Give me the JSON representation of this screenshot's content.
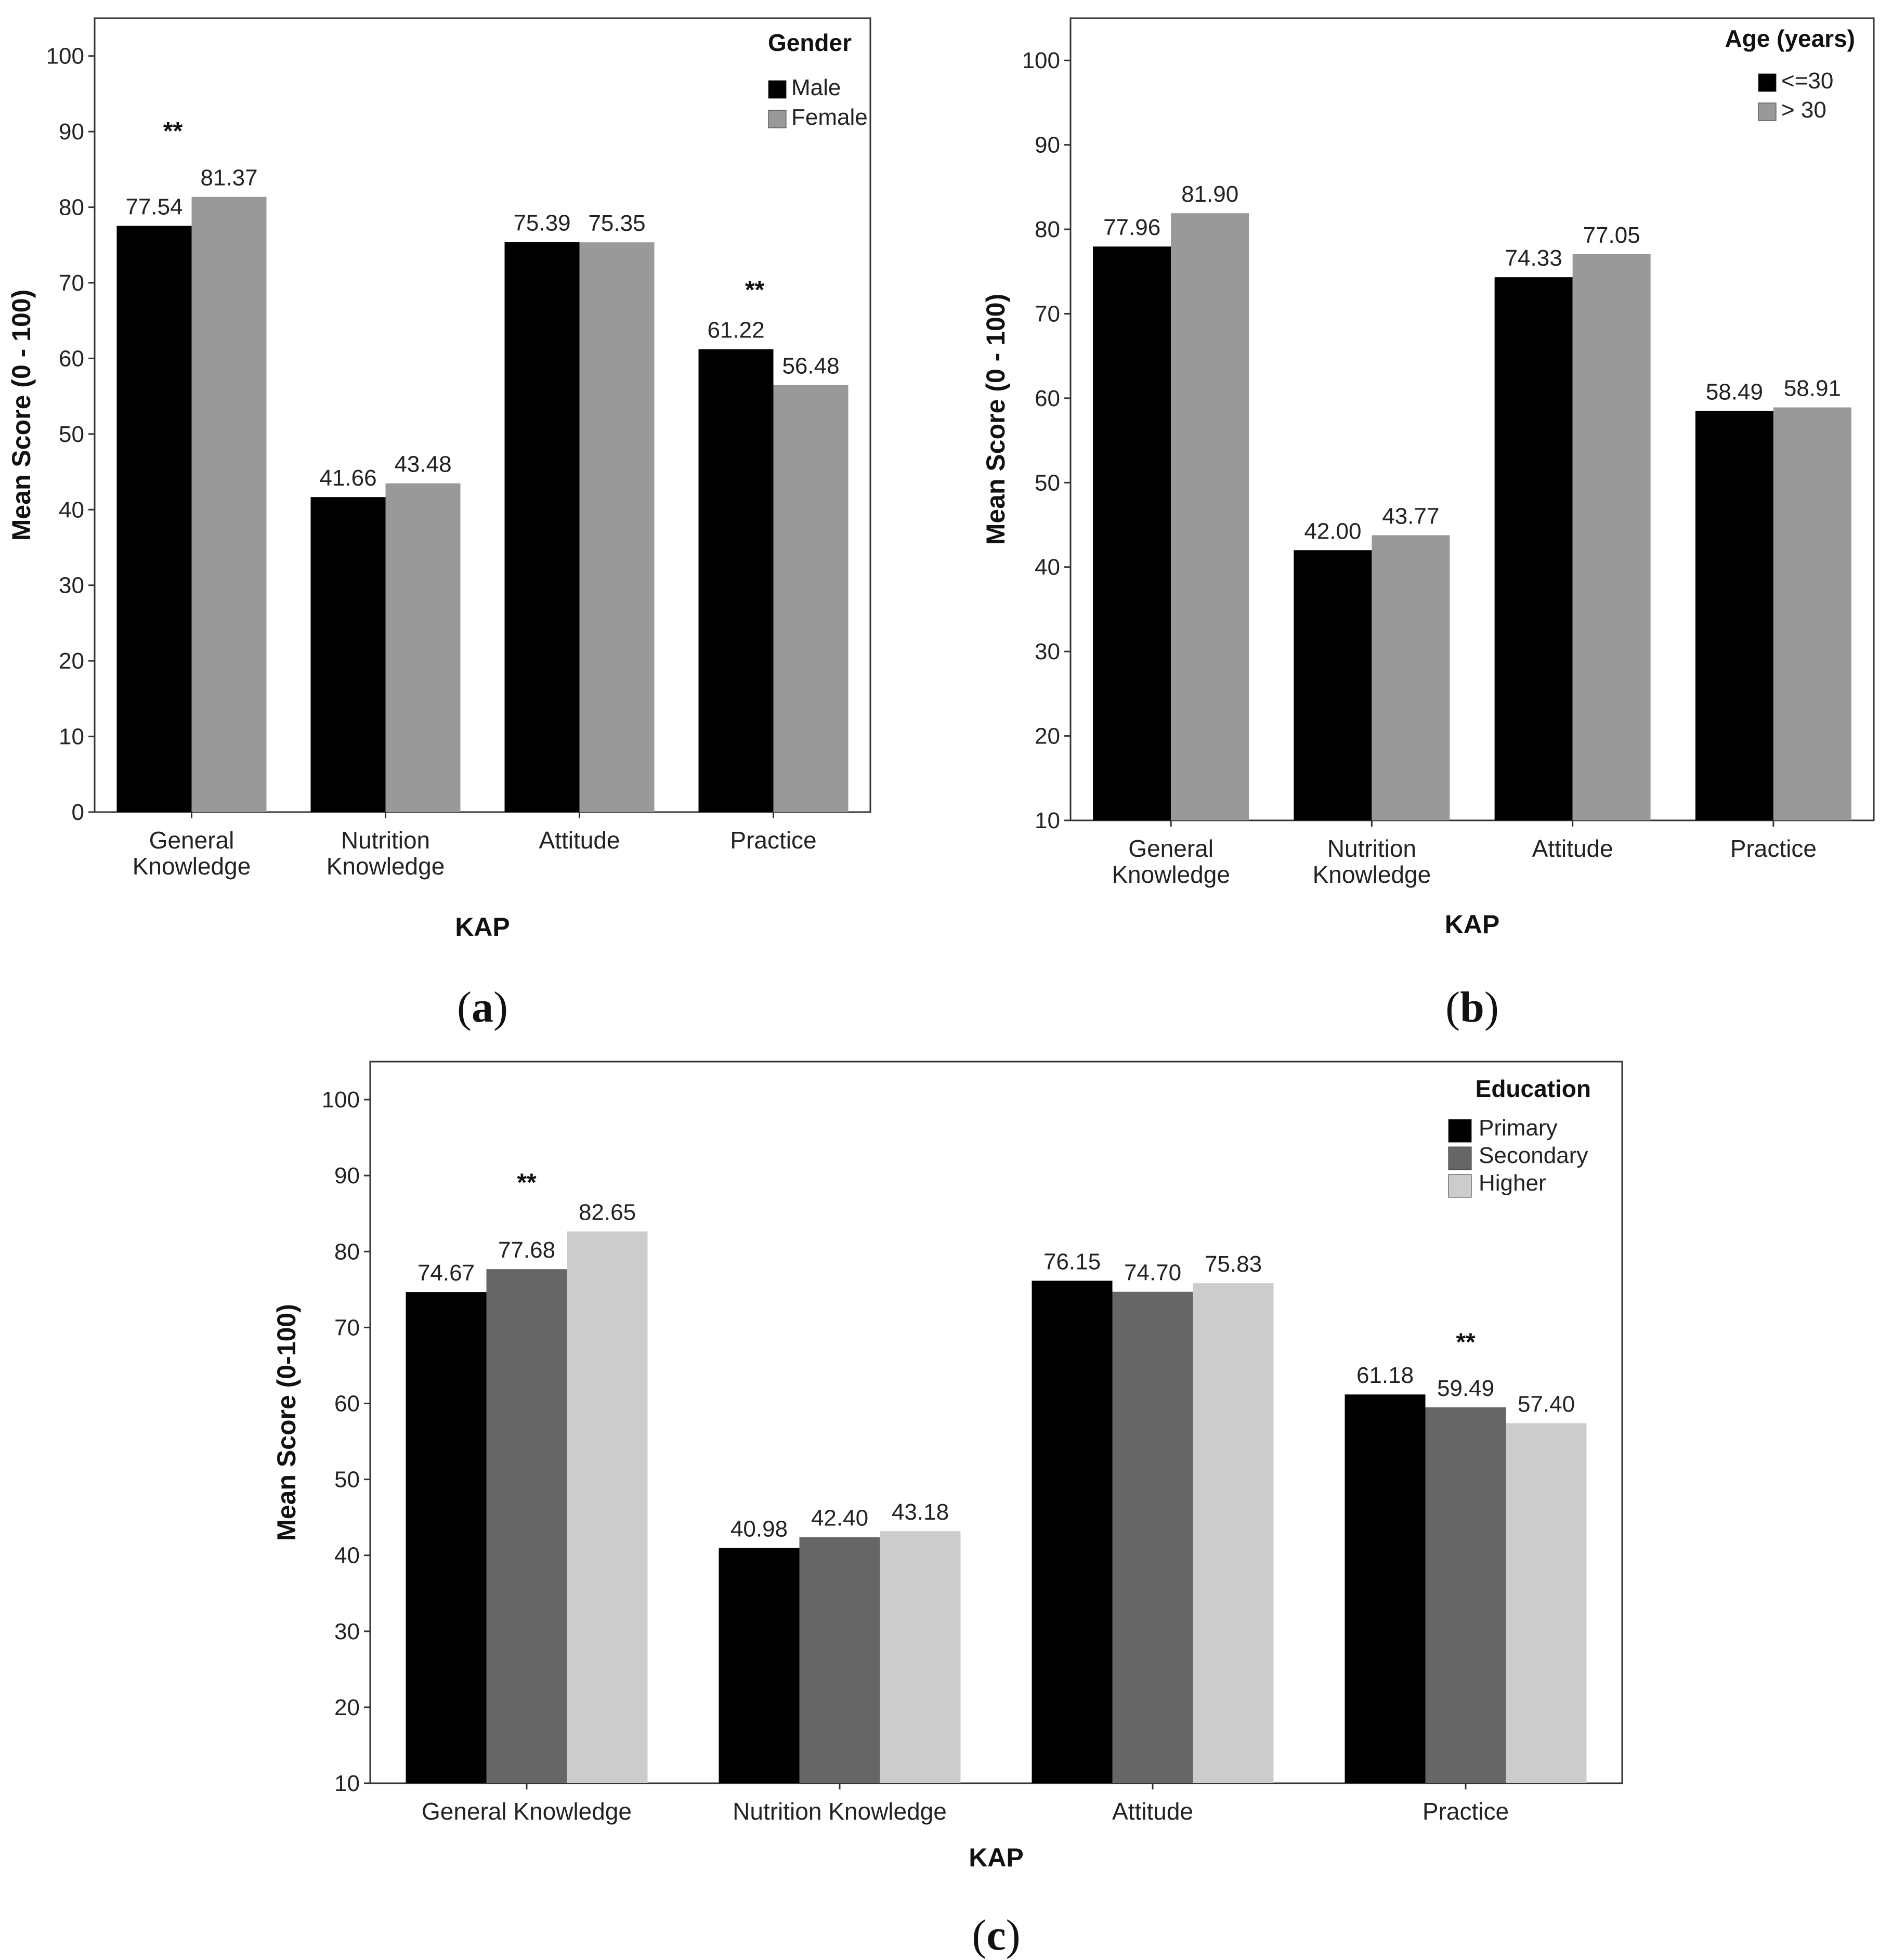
{
  "chart_data": [
    {
      "type": "bar",
      "panel_label": "(a)",
      "panel_letter": "a",
      "categories": [
        [
          "General",
          "Knowledge"
        ],
        [
          "Nutrition",
          "Knowledge"
        ],
        [
          "Attitude"
        ],
        [
          "Practice"
        ]
      ],
      "series": [
        {
          "name": "Male",
          "color": "#000000",
          "values": [
            77.54,
            41.66,
            75.39,
            61.22
          ],
          "labels": [
            "77.54",
            "41.66",
            "75.39",
            "61.22"
          ]
        },
        {
          "name": "Female",
          "color": "#999999",
          "values": [
            81.37,
            43.48,
            75.35,
            56.48
          ],
          "labels": [
            "81.37",
            "43.48",
            "75.35",
            "56.48"
          ]
        }
      ],
      "significance": [
        {
          "category": 0,
          "text": "**",
          "y_value": 90.5
        },
        {
          "category": 3,
          "text": "**",
          "y_value": 69.5
        }
      ],
      "legend_title": "Gender",
      "legend_position": "top-right",
      "xlabel": "KAP",
      "ylabel": "Mean Score (0 - 100)",
      "ylim": [
        0,
        105
      ],
      "yticks": [
        0,
        10,
        20,
        30,
        40,
        50,
        60,
        70,
        80,
        90,
        100
      ],
      "grid": false
    },
    {
      "type": "bar",
      "panel_label": "(b)",
      "panel_letter": "b",
      "categories": [
        [
          "General",
          "Knowledge"
        ],
        [
          "Nutrition",
          "Knowledge"
        ],
        [
          "Attitude"
        ],
        [
          "Practice"
        ]
      ],
      "series": [
        {
          "name": "<=30",
          "color": "#000000",
          "values": [
            77.96,
            42.0,
            74.33,
            58.49
          ],
          "labels": [
            "77.96",
            "42.00",
            "74.33",
            "58.49"
          ]
        },
        {
          "name": "> 30",
          "color": "#999999",
          "values": [
            81.9,
            43.77,
            77.05,
            58.91
          ],
          "labels": [
            "81.90",
            "43.77",
            "77.05",
            "58.91"
          ]
        }
      ],
      "significance": [],
      "legend_title": "Age (years)",
      "legend_position": "top-right",
      "xlabel": "KAP",
      "ylabel": "Mean Score (0 - 100)",
      "ylim": [
        10,
        105
      ],
      "yticks": [
        10,
        20,
        30,
        40,
        50,
        60,
        70,
        80,
        90,
        100
      ],
      "grid": false
    },
    {
      "type": "bar",
      "panel_label": "(c)",
      "panel_letter": "c",
      "categories": [
        [
          "General Knowledge"
        ],
        [
          "Nutrition Knowledge"
        ],
        [
          "Attitude"
        ],
        [
          "Practice"
        ]
      ],
      "series": [
        {
          "name": "Primary",
          "color": "#000000",
          "values": [
            74.67,
            40.98,
            76.15,
            61.18
          ],
          "labels": [
            "74.67",
            "40.98",
            "76.15",
            "61.18"
          ]
        },
        {
          "name": "Secondary",
          "color": "#666666",
          "values": [
            77.68,
            42.4,
            74.7,
            59.49
          ],
          "labels": [
            "77.68",
            "42.40",
            "74.70",
            "59.49"
          ]
        },
        {
          "name": "Higher",
          "color": "#cccccc",
          "values": [
            82.65,
            43.18,
            75.83,
            57.4
          ],
          "labels": [
            "82.65",
            "43.18",
            "75.83",
            "57.40"
          ]
        }
      ],
      "significance": [
        {
          "category": 0,
          "text": "**",
          "y_value": 89.5
        },
        {
          "category": 3,
          "text": "**",
          "y_value": 68.5
        }
      ],
      "legend_title": "Education",
      "legend_position": "top-right",
      "xlabel": "KAP",
      "ylabel": "Mean Score (0-100)",
      "ylim": [
        10,
        105
      ],
      "yticks": [
        10,
        20,
        30,
        40,
        50,
        60,
        70,
        80,
        90,
        100
      ],
      "grid": false
    }
  ]
}
